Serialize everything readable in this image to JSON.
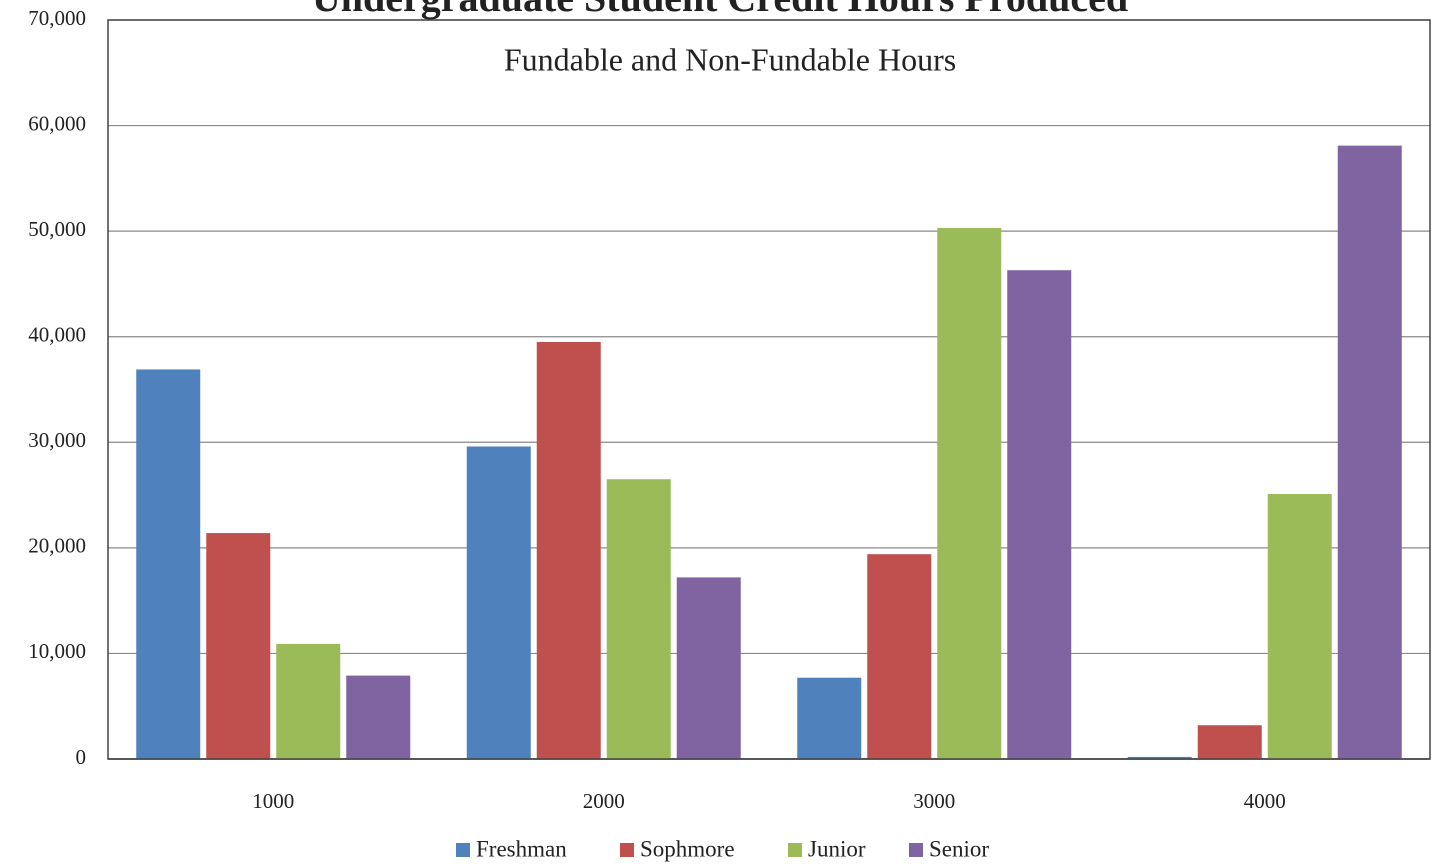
{
  "chart_data": {
    "type": "bar",
    "title": "Undergraduate Student Credit Hours Produced",
    "subtitle": "Fundable and Non-Fundable Hours",
    "categories": [
      "1000",
      "2000",
      "3000",
      "4000"
    ],
    "series": [
      {
        "name": "Freshman",
        "color": "#4f81bd",
        "values": [
          36900,
          29600,
          7700,
          200
        ]
      },
      {
        "name": "Sophmore",
        "color": "#c0504d",
        "values": [
          21400,
          39500,
          19400,
          3200
        ]
      },
      {
        "name": "Junior",
        "color": "#9bbb59",
        "values": [
          10900,
          26500,
          50300,
          25100
        ]
      },
      {
        "name": "Senior",
        "color": "#8064a2",
        "values": [
          7900,
          17200,
          46300,
          58100
        ]
      }
    ],
    "ylim": [
      0,
      70000
    ],
    "yticks": [
      0,
      {
        "value": 10000,
        "label": "10,000"
      },
      {
        "value": 20000,
        "label": "20,000"
      },
      {
        "value": 30000,
        "label": "30,000"
      },
      {
        "value": 40000,
        "label": "40,000"
      },
      {
        "value": 50000,
        "label": "50,000"
      },
      {
        "value": 60000,
        "label": "60,000"
      },
      {
        "value": 70000,
        "label": "70,000"
      }
    ],
    "grid": true,
    "legend": "bottom"
  }
}
